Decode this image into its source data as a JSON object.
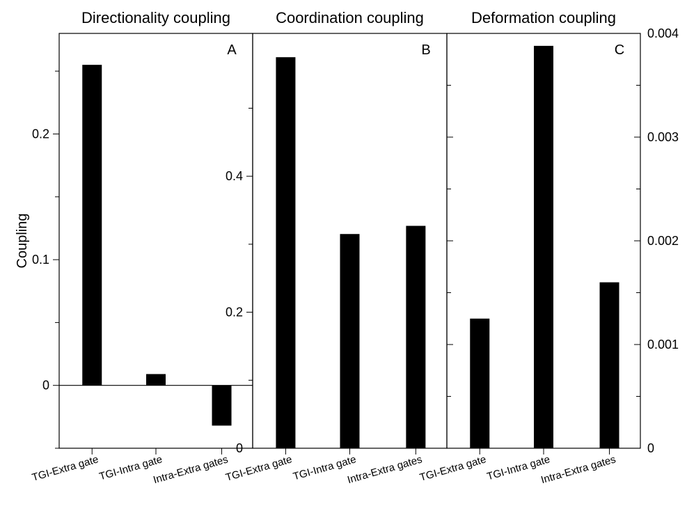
{
  "chart_data": [
    {
      "type": "bar",
      "title": "Directionality coupling",
      "panel_label": "A",
      "ylabel": "Coupling",
      "categories": [
        "TGI-Extra gate",
        "TGI-Intra gate",
        "Intra-Extra gates"
      ],
      "values": [
        0.255,
        0.009,
        -0.032
      ],
      "ylim": [
        -0.05,
        0.28
      ],
      "yticks": [
        0,
        0.1,
        0.2
      ],
      "ytick_labels": [
        "0",
        "0.1",
        "0.2"
      ],
      "minor_ticks": [
        -0.05,
        0.05,
        0.15,
        0.25
      ],
      "zero_line": true,
      "grid": false,
      "bar_color": "#000000"
    },
    {
      "type": "bar",
      "title": "Coordination coupling",
      "panel_label": "B",
      "categories": [
        "TGI-Extra gate",
        "TGI-Intra gate",
        "Intra-Extra gates"
      ],
      "values": [
        0.575,
        0.315,
        0.327
      ],
      "ylim": [
        0,
        0.61
      ],
      "yticks": [
        0,
        0.2,
        0.4
      ],
      "ytick_labels": [
        "0",
        "0.2",
        "0.4"
      ],
      "minor_ticks": [
        0.1,
        0.3,
        0.5
      ],
      "grid": false,
      "bar_color": "#000000"
    },
    {
      "type": "bar",
      "title": "Deformation coupling",
      "panel_label": "C",
      "categories": [
        "TGI-Extra gate",
        "TGI-Intra gate",
        "Intra-Extra gates"
      ],
      "values": [
        0.00125,
        0.00388,
        0.0016
      ],
      "ylim": [
        0,
        0.004
      ],
      "yticks": [
        0,
        0.001,
        0.002,
        0.003,
        0.004
      ],
      "ytick_labels": [
        "0",
        "0.001",
        "0.002",
        "0.003",
        "0.004"
      ],
      "minor_ticks": [
        0.0005,
        0.0015,
        0.0025,
        0.0035
      ],
      "y_axis_side": "right",
      "grid": false,
      "bar_color": "#000000"
    }
  ]
}
